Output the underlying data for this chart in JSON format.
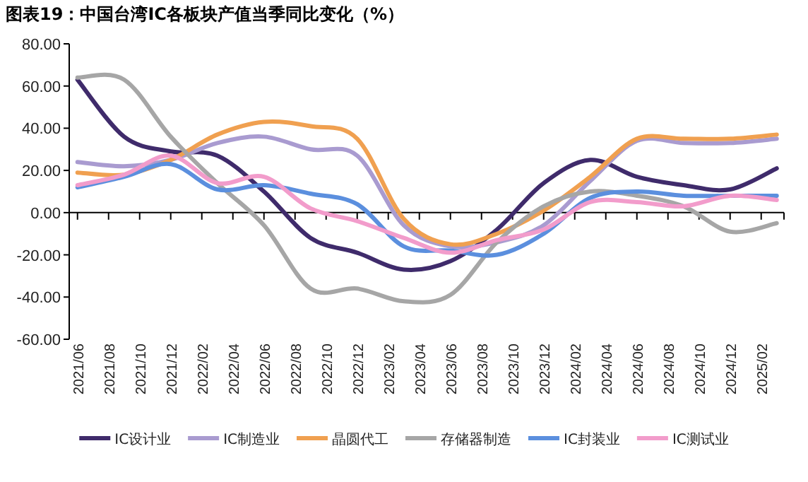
{
  "chart_data": {
    "type": "line",
    "title": "图表19：中国台湾IC各板块产值当季同比变化（%）",
    "x": [
      "2021-06",
      "2021-09",
      "2021-12",
      "2022-03",
      "2022-06",
      "2022-09",
      "2022-12",
      "2023-03",
      "2023-06",
      "2023-09",
      "2023-12",
      "2024-03",
      "2024-06",
      "2024-09",
      "2024-12",
      "2025-03"
    ],
    "xlim": [
      "2021-05-15",
      "2025-03-15"
    ],
    "xticks": [
      {
        "value": "2021-06",
        "label": "2021/06"
      },
      {
        "value": "2021-08",
        "label": "2021/08"
      },
      {
        "value": "2021-10",
        "label": "2021/10"
      },
      {
        "value": "2021-12",
        "label": "2021/12"
      },
      {
        "value": "2022-02",
        "label": "2022/02"
      },
      {
        "value": "2022-04",
        "label": "2022/04"
      },
      {
        "value": "2022-06",
        "label": "2022/06"
      },
      {
        "value": "2022-08",
        "label": "2022/08"
      },
      {
        "value": "2022-10",
        "label": "2022/10"
      },
      {
        "value": "2022-12",
        "label": "2022/12"
      },
      {
        "value": "2023-02",
        "label": "2023/02"
      },
      {
        "value": "2023-04",
        "label": "2023/04"
      },
      {
        "value": "2023-06",
        "label": "2023/06"
      },
      {
        "value": "2023-08",
        "label": "2023/08"
      },
      {
        "value": "2023-10",
        "label": "2023/10"
      },
      {
        "value": "2023-12",
        "label": "2023/12"
      },
      {
        "value": "2024-02",
        "label": "2024/02"
      },
      {
        "value": "2024-04",
        "label": "2024/04"
      },
      {
        "value": "2024-06",
        "label": "2024/06"
      },
      {
        "value": "2024-08",
        "label": "2024/08"
      },
      {
        "value": "2024-10",
        "label": "2024/10"
      },
      {
        "value": "2024-12",
        "label": "2024/12"
      },
      {
        "value": "2025-02",
        "label": "2025/02"
      }
    ],
    "ylim": [
      -60,
      80
    ],
    "yticks": [
      {
        "value": -60,
        "label": "-60.00"
      },
      {
        "value": -40,
        "label": "-40.00"
      },
      {
        "value": -20,
        "label": "-20.00"
      },
      {
        "value": 0,
        "label": "0.00"
      },
      {
        "value": 20,
        "label": "20.00"
      },
      {
        "value": 40,
        "label": "40.00"
      },
      {
        "value": 60,
        "label": "60.00"
      },
      {
        "value": 80,
        "label": "80.00"
      }
    ],
    "legend": "bottom",
    "marker": "none",
    "line_style": "solid",
    "series": [
      {
        "name": "IC设计业",
        "color": "#3f2b6b",
        "values": [
          63,
          36,
          29,
          27,
          10,
          -12,
          -19,
          -27,
          -23,
          -8,
          14,
          25,
          17,
          13,
          11,
          21
        ]
      },
      {
        "name": "IC制造业",
        "color": "#a99bd0",
        "values": [
          24,
          22,
          25,
          33,
          36,
          30,
          27,
          -6,
          -16,
          -14,
          -6,
          15,
          34,
          33,
          33,
          35
        ]
      },
      {
        "name": "晶圆代工",
        "color": "#f0a050",
        "values": [
          19,
          18,
          25,
          37,
          43,
          41,
          35,
          -3,
          -15,
          -10,
          1,
          17,
          35,
          35,
          35,
          37
        ]
      },
      {
        "name": "存储器制造",
        "color": "#a6a6a6",
        "values": [
          64,
          63,
          36,
          14,
          -6,
          -36,
          -36,
          -42,
          -39,
          -14,
          3,
          10,
          8,
          3,
          -9,
          -5
        ]
      },
      {
        "name": "IC封装业",
        "color": "#5b8fde",
        "values": [
          12,
          17,
          23,
          11,
          13,
          9,
          4,
          -16,
          -18,
          -20,
          -10,
          7,
          10,
          8,
          8,
          8
        ]
      },
      {
        "name": "IC测试业",
        "color": "#f29ccb",
        "values": [
          13,
          18,
          27,
          14,
          17,
          2,
          -4,
          -12,
          -19,
          -13,
          -8,
          5,
          5,
          3,
          8,
          6
        ]
      }
    ]
  }
}
